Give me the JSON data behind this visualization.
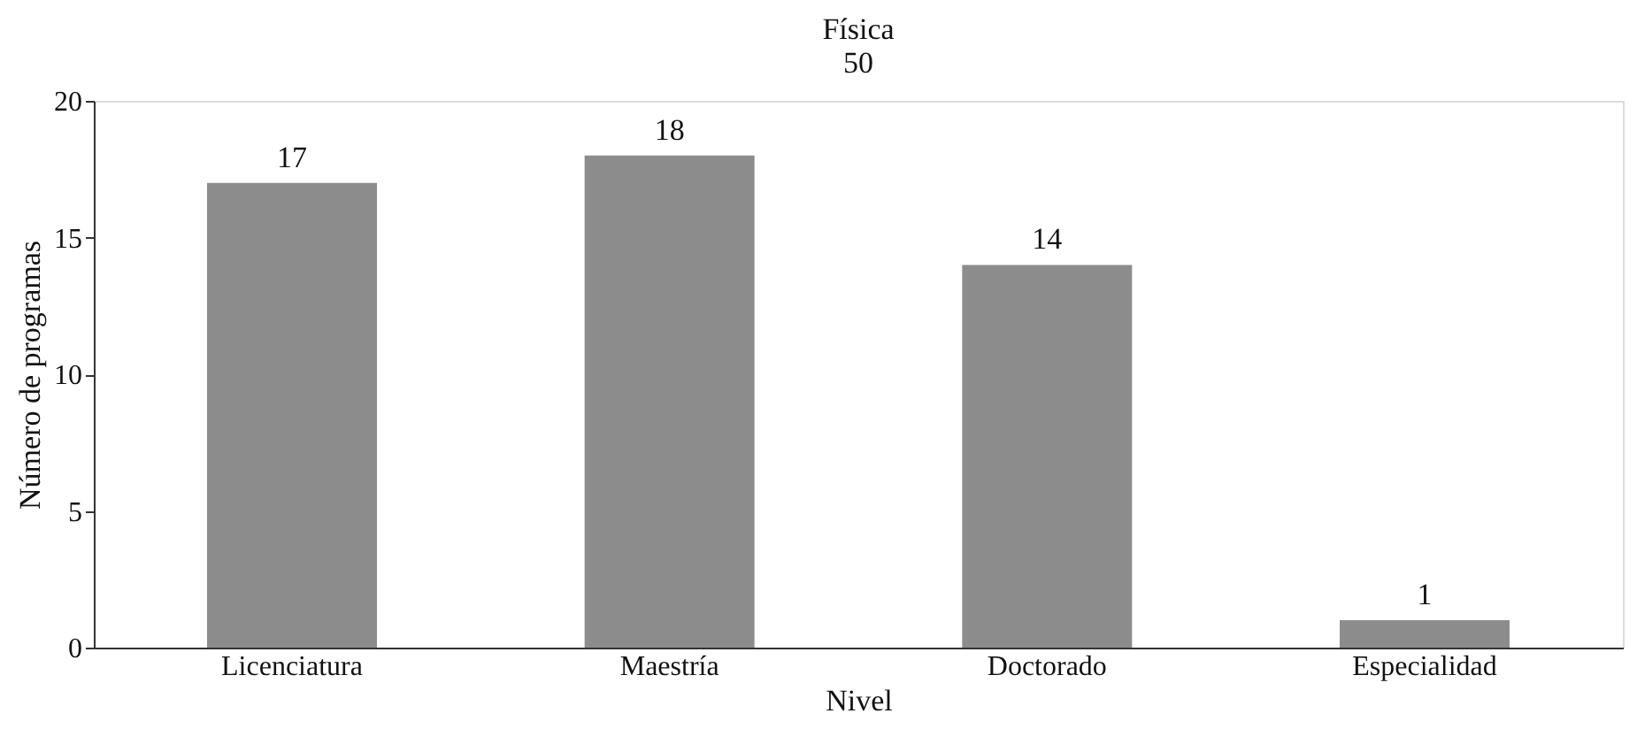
{
  "chart_data": {
    "type": "bar",
    "title": "Física",
    "subtitle": "50",
    "xlabel": "Nivel",
    "ylabel": "Número de programas",
    "categories": [
      "Licenciatura",
      "Maestría",
      "Doctorado",
      "Especialidad"
    ],
    "values": [
      17,
      18,
      14,
      1
    ],
    "color": "#8c8c8c",
    "ylim": [
      0,
      20
    ],
    "yticks": [
      0,
      5,
      10,
      15,
      20
    ],
    "grid": false,
    "data_labels": true
  }
}
